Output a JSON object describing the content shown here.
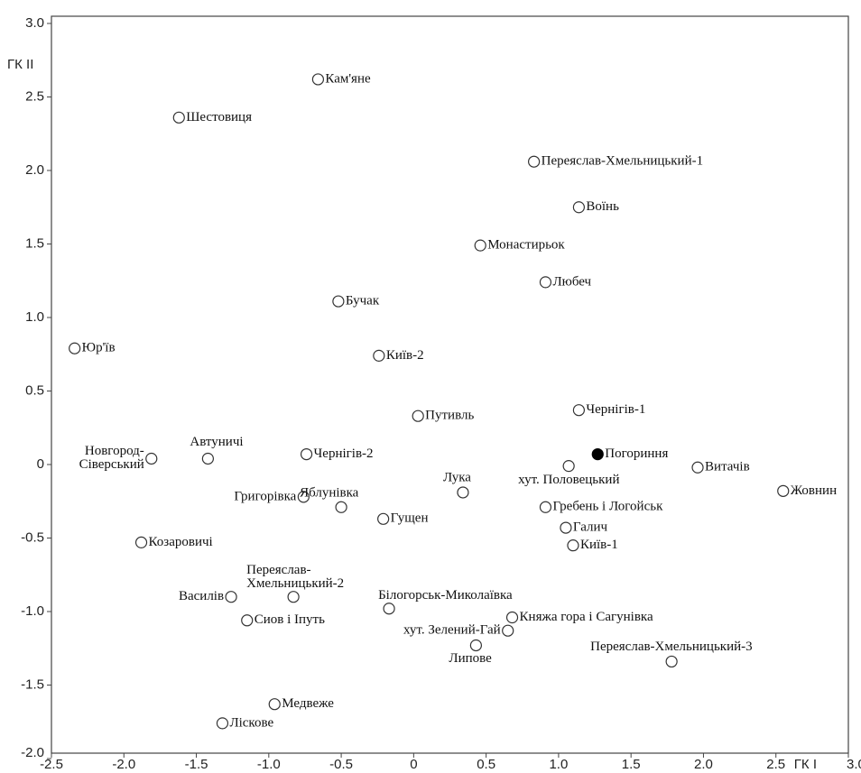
{
  "chart_data": {
    "type": "scatter",
    "x_label": "ГК I",
    "y_label": "ГК II",
    "xlim": [
      -2.5,
      3.0
    ],
    "ylim": [
      -2.0,
      3.0
    ],
    "xticks": [
      -2.5,
      {
        "value": -2,
        "label": "-2.0"
      },
      -1.5,
      {
        "value": -1,
        "label": "-1.0"
      },
      -0.5,
      0,
      0.5,
      {
        "value": 1,
        "label": "1.0"
      },
      1.5,
      {
        "value": 2,
        "label": "2.0"
      },
      2.5,
      {
        "value": 3,
        "label": "3.0"
      }
    ],
    "yticks": [
      {
        "value": 3,
        "label": "3.0"
      },
      2.5,
      {
        "value": 2,
        "label": "2.0"
      },
      1.5,
      {
        "value": 1,
        "label": "1.0"
      },
      0.5,
      0,
      -0.5,
      {
        "value": -1,
        "label": "-1.0"
      },
      -1.5,
      {
        "value": -2,
        "label": "-2.0"
      }
    ],
    "series": [
      {
        "marker": "open",
        "color": "#333",
        "x": [
          -0.66,
          -1.62,
          0.83,
          1.14,
          0.46,
          0.91,
          -0.52,
          -2.34,
          -0.24,
          0.03,
          1.14,
          -1.81,
          -1.42,
          -0.74,
          1.07,
          1.96,
          2.55,
          0.34,
          -0.76,
          -0.5,
          -0.21,
          0.91,
          1.05,
          1.1,
          -1.88,
          -1.26,
          -0.83,
          -0.17,
          -1.15,
          0.68,
          0.65,
          0.43,
          1.78,
          -0.96,
          -1.32
        ],
        "values": [
          2.62,
          2.36,
          2.06,
          1.75,
          1.49,
          1.24,
          1.11,
          0.79,
          0.74,
          0.33,
          0.37,
          0.04,
          0.04,
          0.07,
          -0.01,
          -0.02,
          -0.18,
          -0.19,
          -0.22,
          -0.29,
          -0.37,
          -0.29,
          -0.43,
          -0.55,
          -0.53,
          -0.9,
          -0.9,
          -0.98,
          -1.06,
          -1.04,
          -1.13,
          -1.23,
          -1.34,
          -1.63,
          -1.76
        ],
        "labels": [
          [
            "Кам'яне"
          ],
          [
            "Шестовиця"
          ],
          [
            "Переяслав-Хмельницький-1"
          ],
          [
            "Воїнь"
          ],
          [
            "Монастирьок"
          ],
          [
            "Любеч"
          ],
          [
            "Бучак"
          ],
          [
            "Юр'їв"
          ],
          [
            "Київ-2"
          ],
          [
            "Путивль"
          ],
          [
            "Чернігів-1"
          ],
          [
            "Новгород-",
            "Сіверський"
          ],
          [
            "Автуничі"
          ],
          [
            "Чернігів-2"
          ],
          [
            "хут. Половецький"
          ],
          [
            "Витачів"
          ],
          [
            "Жовнин"
          ],
          [
            "Лука"
          ],
          [
            "Григорівка"
          ],
          [
            "Яблунівка"
          ],
          [
            "Гущен"
          ],
          [
            "Гребень і Логойськ"
          ],
          [
            "Галич"
          ],
          [
            "Київ-1"
          ],
          [
            "Козаровичі"
          ],
          [
            "Василів"
          ],
          [
            "Переяслав-",
            "Хмельницький-2"
          ],
          [
            "Білогорськ-Миколаївка"
          ],
          [
            "Сиов і Іпуть"
          ],
          [
            "Княжа гора і Сагунівка"
          ],
          [
            "хут. Зелений-Гай"
          ],
          [
            "Липове"
          ],
          [
            "Переяслав-Хмельницький-3"
          ],
          [
            "Медвеже"
          ],
          [
            "Ліскове"
          ]
        ]
      },
      {
        "marker": "filled",
        "color": "#000",
        "x": [
          1.27
        ],
        "values": [
          0.07
        ],
        "labels": [
          [
            "Погориння"
          ]
        ]
      }
    ]
  }
}
